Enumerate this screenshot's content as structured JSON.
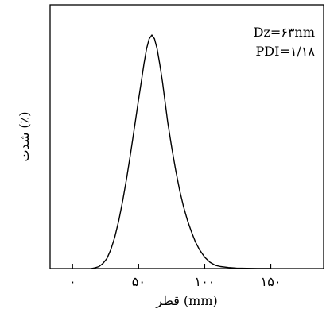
{
  "chart_data": {
    "type": "line",
    "title": "",
    "xlabel": "قطر (mm)",
    "ylabel": "شدت (٪)",
    "xlim": [
      -17,
      190
    ],
    "ylim": [
      0,
      100
    ],
    "xticks": [
      0,
      50,
      100,
      150
    ],
    "xtick_labels": [
      "۰",
      "۵۰",
      "۱۰۰",
      "۱۵۰"
    ],
    "yticks_shown": false,
    "grid": false,
    "legend": "none",
    "annotations": [
      "Dz=۶۳nm",
      "PDI=۱/۱۸"
    ],
    "series": [
      {
        "color": "#000000",
        "x": [
          14,
          17,
          20,
          23,
          26,
          29,
          32,
          35,
          38,
          41,
          44,
          47,
          50,
          52,
          54,
          56,
          58,
          60,
          62,
          64,
          66,
          68,
          70,
          72,
          75,
          78,
          81,
          84,
          87,
          90,
          93,
          96,
          100,
          104,
          108,
          112,
          118,
          124,
          132,
          140,
          150
        ],
        "y": [
          0,
          0.3,
          0.8,
          2,
          4,
          7.5,
          12.5,
          19,
          27,
          36,
          46,
          56.5,
          67,
          74,
          81,
          87,
          91,
          92.5,
          91,
          87,
          81,
          74,
          66,
          58,
          48,
          39,
          31,
          24.5,
          19,
          14.5,
          10.5,
          7.5,
          4.5,
          2.5,
          1.3,
          0.8,
          0.4,
          0.2,
          0.1,
          0,
          0
        ]
      }
    ]
  }
}
